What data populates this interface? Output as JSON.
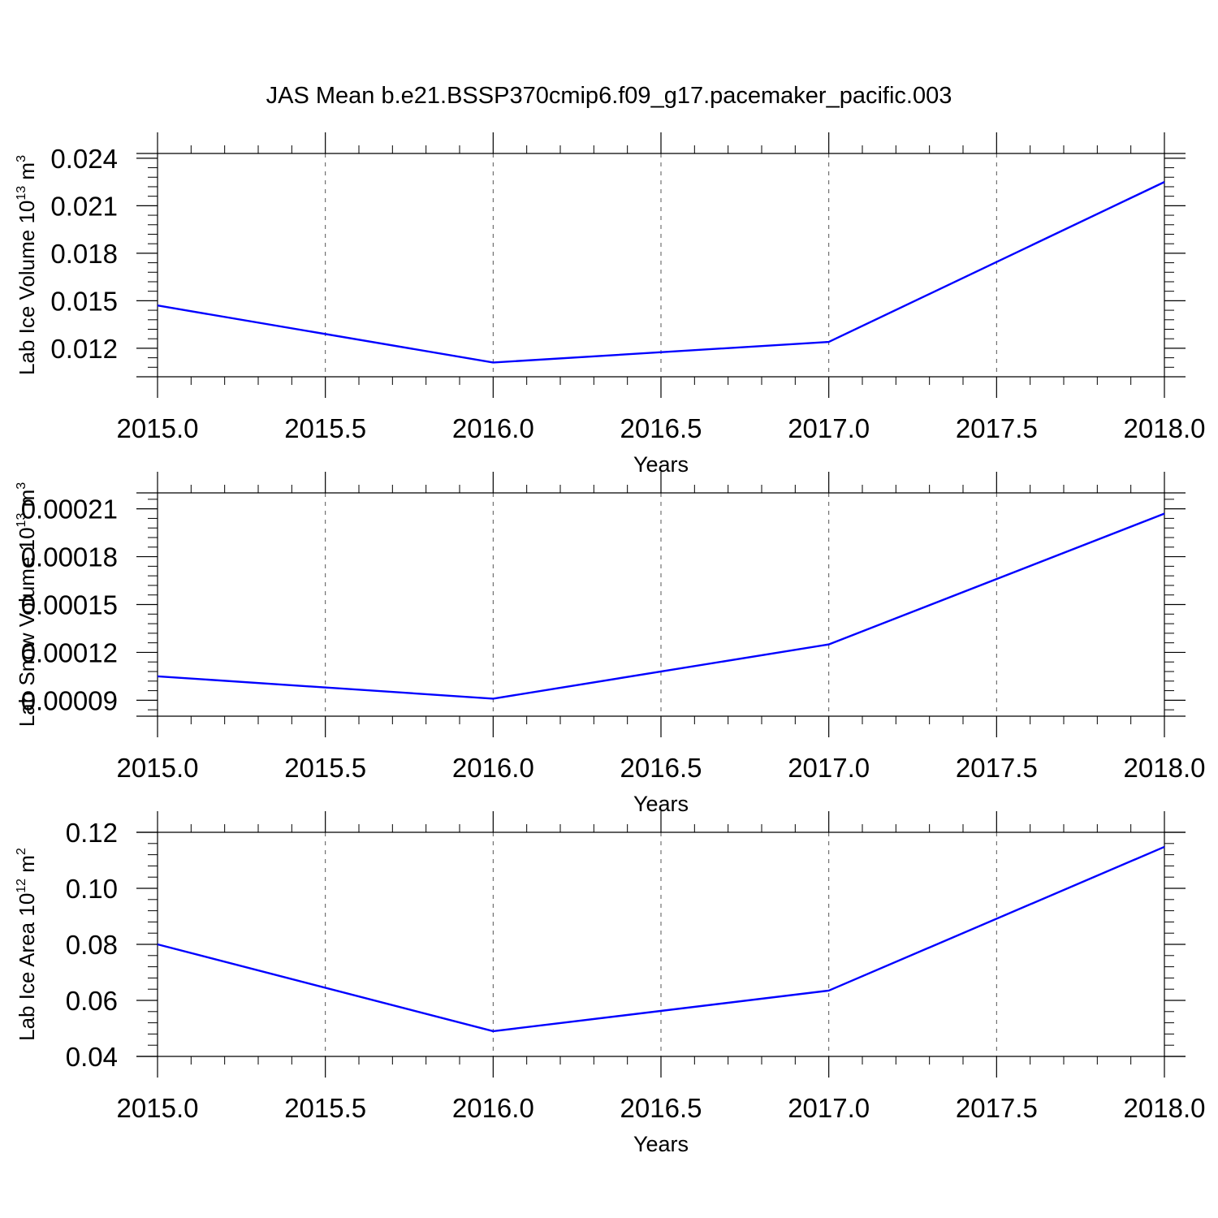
{
  "title": "JAS Mean b.e21.BSSP370cmip6.f09_g17.pacemaker_pacific.003",
  "line_color": "#0000ff",
  "chart_data": [
    {
      "type": "line",
      "ylabel": {
        "main": "Lab Ice Volume 10",
        "sup": "13",
        "unit": " m",
        "unit_sup": "3"
      },
      "xlabel": "Years",
      "x": [
        2015,
        2016,
        2017,
        2018
      ],
      "series": [
        {
          "values": [
            0.0147,
            0.0111,
            0.0124,
            0.0225
          ]
        }
      ],
      "xlim": [
        2015,
        2018
      ],
      "ylim": [
        0.0102,
        0.0243
      ],
      "yticks": [
        0.012,
        0.015,
        0.018,
        0.021,
        0.024
      ],
      "ytick_labels": [
        "0.012",
        "0.015",
        "0.018",
        "0.021",
        "0.024"
      ],
      "yminor": 0.0006,
      "xticks": [
        2015,
        2015.5,
        2016,
        2016.5,
        2017,
        2017.5,
        2018
      ],
      "xtick_labels": [
        "2015.0",
        "2015.5",
        "2016.0",
        "2016.5",
        "2017.0",
        "2017.5",
        "2018.0"
      ],
      "xminor": 0.1,
      "grid": "x-dashed"
    },
    {
      "type": "line",
      "ylabel": {
        "main": "Lab Snow Volume 10",
        "sup": "13",
        "unit": " m",
        "unit_sup": "3"
      },
      "xlabel": "Years",
      "x": [
        2015,
        2016,
        2017,
        2018
      ],
      "series": [
        {
          "values": [
            0.000105,
            9.1e-05,
            0.000125,
            0.000207
          ]
        }
      ],
      "xlim": [
        2015,
        2018
      ],
      "ylim": [
        8e-05,
        0.00022
      ],
      "yticks": [
        9e-05,
        0.00012,
        0.00015,
        0.00018,
        0.00021
      ],
      "ytick_labels": [
        "0.00009",
        "0.00012",
        "0.00015",
        "0.00018",
        "0.00021"
      ],
      "yminor": 6e-06,
      "xticks": [
        2015,
        2015.5,
        2016,
        2016.5,
        2017,
        2017.5,
        2018
      ],
      "xtick_labels": [
        "2015.0",
        "2015.5",
        "2016.0",
        "2016.5",
        "2017.0",
        "2017.5",
        "2018.0"
      ],
      "xminor": 0.1,
      "grid": "x-dashed"
    },
    {
      "type": "line",
      "ylabel": {
        "main": "Lab Ice Area 10",
        "sup": "12",
        "unit": " m",
        "unit_sup": "2"
      },
      "xlabel": "Years",
      "x": [
        2015,
        2016,
        2017,
        2018
      ],
      "series": [
        {
          "values": [
            0.08,
            0.049,
            0.0635,
            0.1148
          ]
        }
      ],
      "xlim": [
        2015,
        2018
      ],
      "ylim": [
        0.04,
        0.12
      ],
      "yticks": [
        0.04,
        0.06,
        0.08,
        0.1,
        0.12
      ],
      "ytick_labels": [
        "0.04",
        "0.06",
        "0.08",
        "0.10",
        "0.12"
      ],
      "yminor": 0.004,
      "xticks": [
        2015,
        2015.5,
        2016,
        2016.5,
        2017,
        2017.5,
        2018
      ],
      "xtick_labels": [
        "2015.0",
        "2015.5",
        "2016.0",
        "2016.5",
        "2017.0",
        "2017.5",
        "2018.0"
      ],
      "xminor": 0.1,
      "grid": "x-dashed"
    }
  ]
}
